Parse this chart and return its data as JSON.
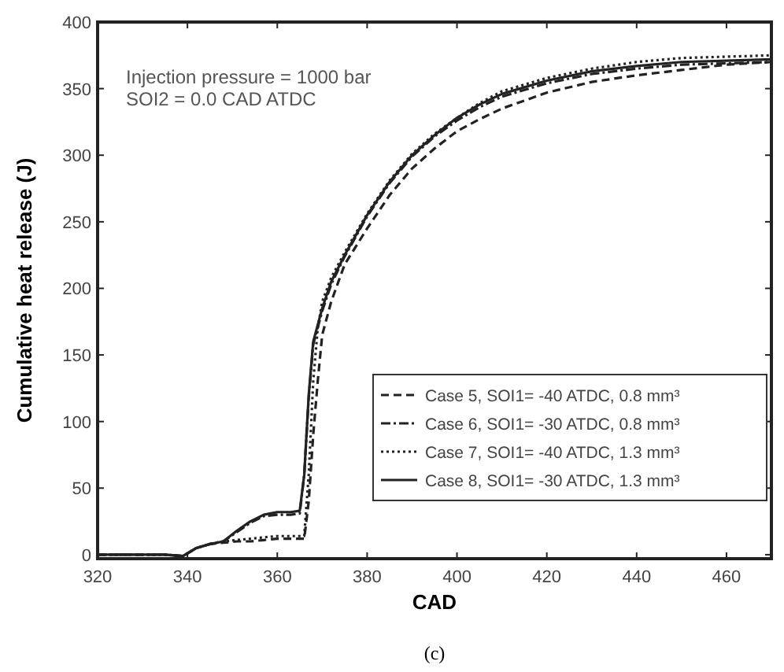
{
  "chart_data": {
    "type": "line",
    "xlabel": "CAD",
    "ylabel": "Cumulative heat release (J)",
    "xlim": [
      320,
      470
    ],
    "ylim": [
      -3,
      400
    ],
    "xticks": [
      320,
      340,
      360,
      380,
      400,
      420,
      440,
      460
    ],
    "yticks": [
      0,
      50,
      100,
      150,
      200,
      250,
      300,
      350,
      400
    ],
    "grid": false,
    "legend": "right",
    "annotations": [
      "Injection pressure = 1000 bar",
      "SOI2 = 0.0 CAD ATDC",
      "(c)"
    ],
    "series": [
      {
        "name": "Case 5, SOI1= -40 ATDC, 0.8 mm³",
        "color": "#222222",
        "line_style": "dashed",
        "x": [
          320,
          335,
          339,
          342,
          345,
          348,
          351,
          354,
          357,
          360,
          363,
          366,
          367,
          368,
          369,
          370,
          372,
          375,
          380,
          385,
          390,
          395,
          400,
          405,
          410,
          420,
          430,
          440,
          450,
          460,
          470
        ],
        "values": [
          0,
          0,
          -1,
          5,
          8,
          9,
          10,
          10,
          11,
          12,
          12,
          12,
          40,
          90,
          130,
          165,
          190,
          218,
          245,
          270,
          290,
          305,
          318,
          327,
          335,
          347,
          355,
          360,
          364,
          368,
          370
        ]
      },
      {
        "name": "Case 6, SOI1= -30 ATDC, 0.8 mm³",
        "color": "#222222",
        "line_style": "dashdot",
        "x": [
          320,
          335,
          339,
          342,
          345,
          348,
          351,
          354,
          357,
          360,
          363,
          365,
          366,
          367,
          368,
          370,
          372,
          375,
          380,
          385,
          390,
          395,
          400,
          405,
          410,
          420,
          430,
          440,
          450,
          460,
          470
        ],
        "values": [
          0,
          0,
          -1,
          5,
          8,
          10,
          17,
          24,
          29,
          30,
          30,
          31,
          60,
          118,
          158,
          183,
          203,
          224,
          254,
          279,
          299,
          314,
          326,
          336,
          344,
          354,
          361,
          365,
          368,
          369,
          370
        ]
      },
      {
        "name": "Case 7, SOI1= -40 ATDC, 1.3 mm³",
        "color": "#222222",
        "line_style": "dotted",
        "x": [
          320,
          335,
          339,
          342,
          345,
          348,
          351,
          354,
          357,
          360,
          363,
          366,
          367,
          368,
          369,
          370,
          372,
          375,
          380,
          385,
          390,
          395,
          400,
          405,
          410,
          420,
          430,
          440,
          450,
          460,
          470
        ],
        "values": [
          0,
          0,
          -1,
          5,
          8,
          10,
          11,
          12,
          13,
          14,
          14,
          14,
          60,
          130,
          170,
          190,
          208,
          227,
          256,
          281,
          301,
          316,
          328,
          339,
          348,
          358,
          365,
          370,
          373,
          374,
          375
        ]
      },
      {
        "name": "Case 8, SOI1= -30 ATDC, 1.3 mm³",
        "color": "#222222",
        "line_style": "solid",
        "x": [
          320,
          335,
          339,
          342,
          345,
          348,
          351,
          354,
          357,
          360,
          363,
          365,
          366,
          367,
          368,
          370,
          372,
          375,
          380,
          385,
          390,
          395,
          400,
          405,
          410,
          420,
          430,
          440,
          450,
          460,
          470
        ],
        "values": [
          0,
          0,
          -1,
          5,
          8,
          10,
          18,
          25,
          30,
          32,
          32,
          33,
          60,
          120,
          160,
          185,
          205,
          225,
          255,
          280,
          300,
          315,
          328,
          338,
          346,
          356,
          363,
          367,
          370,
          371,
          372
        ]
      }
    ]
  }
}
